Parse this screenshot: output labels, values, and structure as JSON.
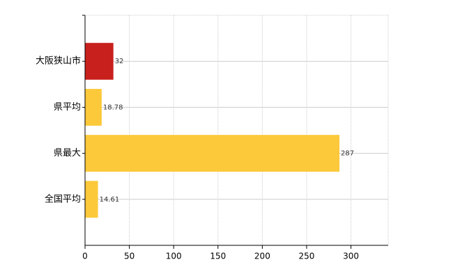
{
  "chart_data": {
    "type": "bar",
    "orientation": "horizontal",
    "categories": [
      "大阪狭山市",
      "県平均",
      "県最大",
      "全国平均"
    ],
    "values": [
      32,
      18.78,
      287,
      14.61
    ],
    "colors": [
      "#c8201c",
      "#fbc93a",
      "#fbc93a",
      "#fbc93a"
    ],
    "xlim": [
      0,
      342
    ],
    "xticks": [
      0,
      50,
      100,
      150,
      200,
      250,
      300
    ],
    "grid": true
  }
}
